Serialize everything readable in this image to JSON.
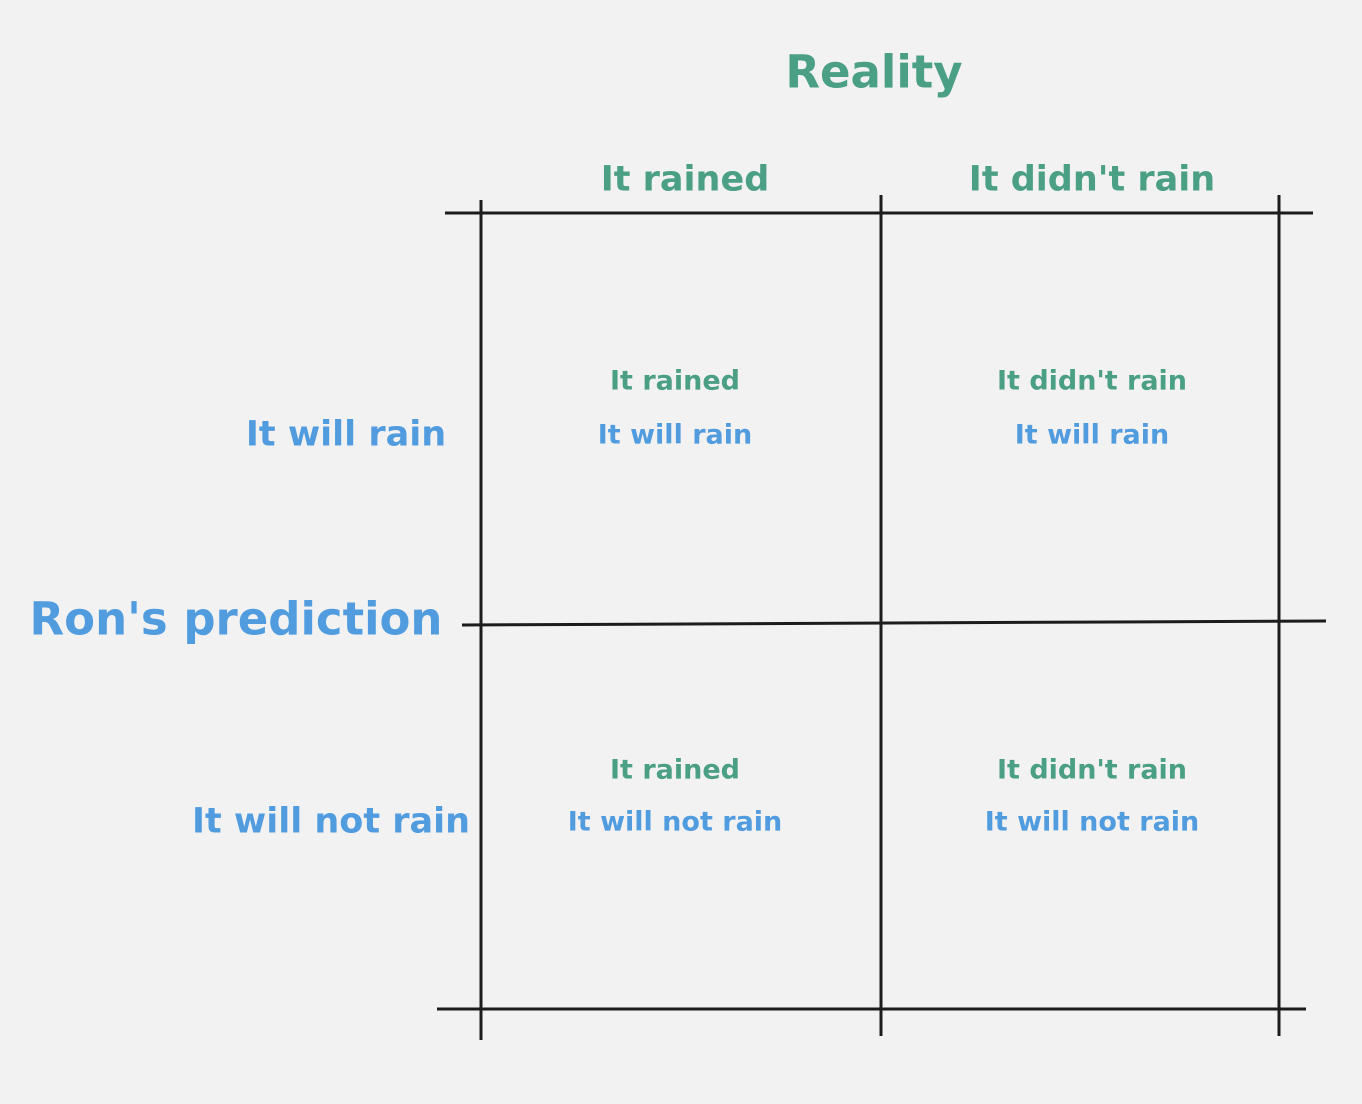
{
  "diagram": {
    "column_axis_title": "Reality",
    "row_axis_title": "Ron's prediction",
    "columns": [
      "It rained",
      "It didn't rain"
    ],
    "rows": [
      "It will rain",
      "It will not rain"
    ],
    "cells": [
      {
        "reality": "It rained",
        "prediction": "It will rain"
      },
      {
        "reality": "It didn't rain",
        "prediction": "It will rain"
      },
      {
        "reality": "It rained",
        "prediction": "It will not rain"
      },
      {
        "reality": "It didn't rain",
        "prediction": "It will not rain"
      }
    ]
  },
  "colors": {
    "reality": "#4a9f84",
    "prediction": "#519cdf",
    "lines": "#1c1c1c",
    "background": "#f2f2f2"
  }
}
